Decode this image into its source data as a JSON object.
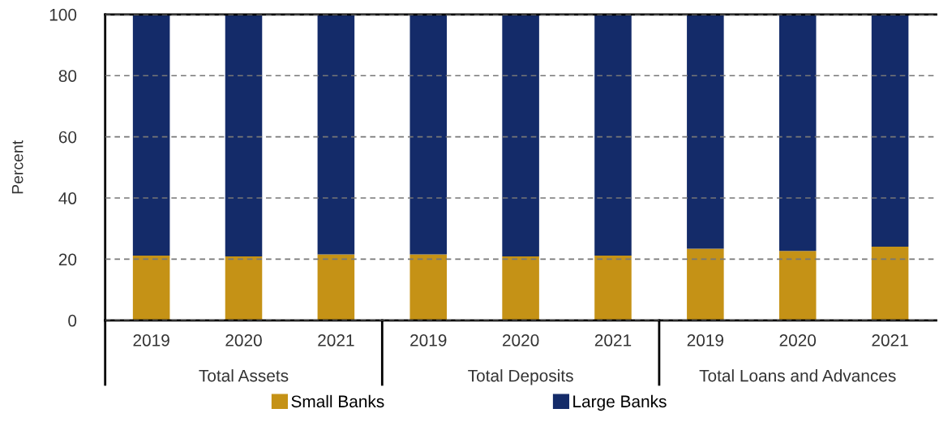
{
  "chart_data": {
    "type": "bar",
    "stacked": true,
    "ylabel": "Percent",
    "categories": [
      "2019",
      "2020",
      "2021",
      "2019",
      "2020",
      "2021",
      "2019",
      "2020",
      "2021"
    ],
    "series": [
      {
        "name": "Small Banks",
        "color": "#c59216",
        "values": [
          21.2,
          20.9,
          21.6,
          21.6,
          20.9,
          21.2,
          23.4,
          22.7,
          24.1
        ]
      },
      {
        "name": "Large Banks",
        "color": "#142b69",
        "values": [
          78.8,
          79.1,
          78.4,
          78.4,
          79.1,
          78.8,
          76.6,
          77.3,
          75.9
        ]
      }
    ],
    "annotations": [
      "Total Assets",
      "Total Deposits",
      "Total Loans and Advances"
    ],
    "ylim": [
      0,
      100
    ],
    "yticks": [
      0,
      20,
      40,
      60,
      80,
      100
    ],
    "grid": "y",
    "legend": "bottom"
  }
}
